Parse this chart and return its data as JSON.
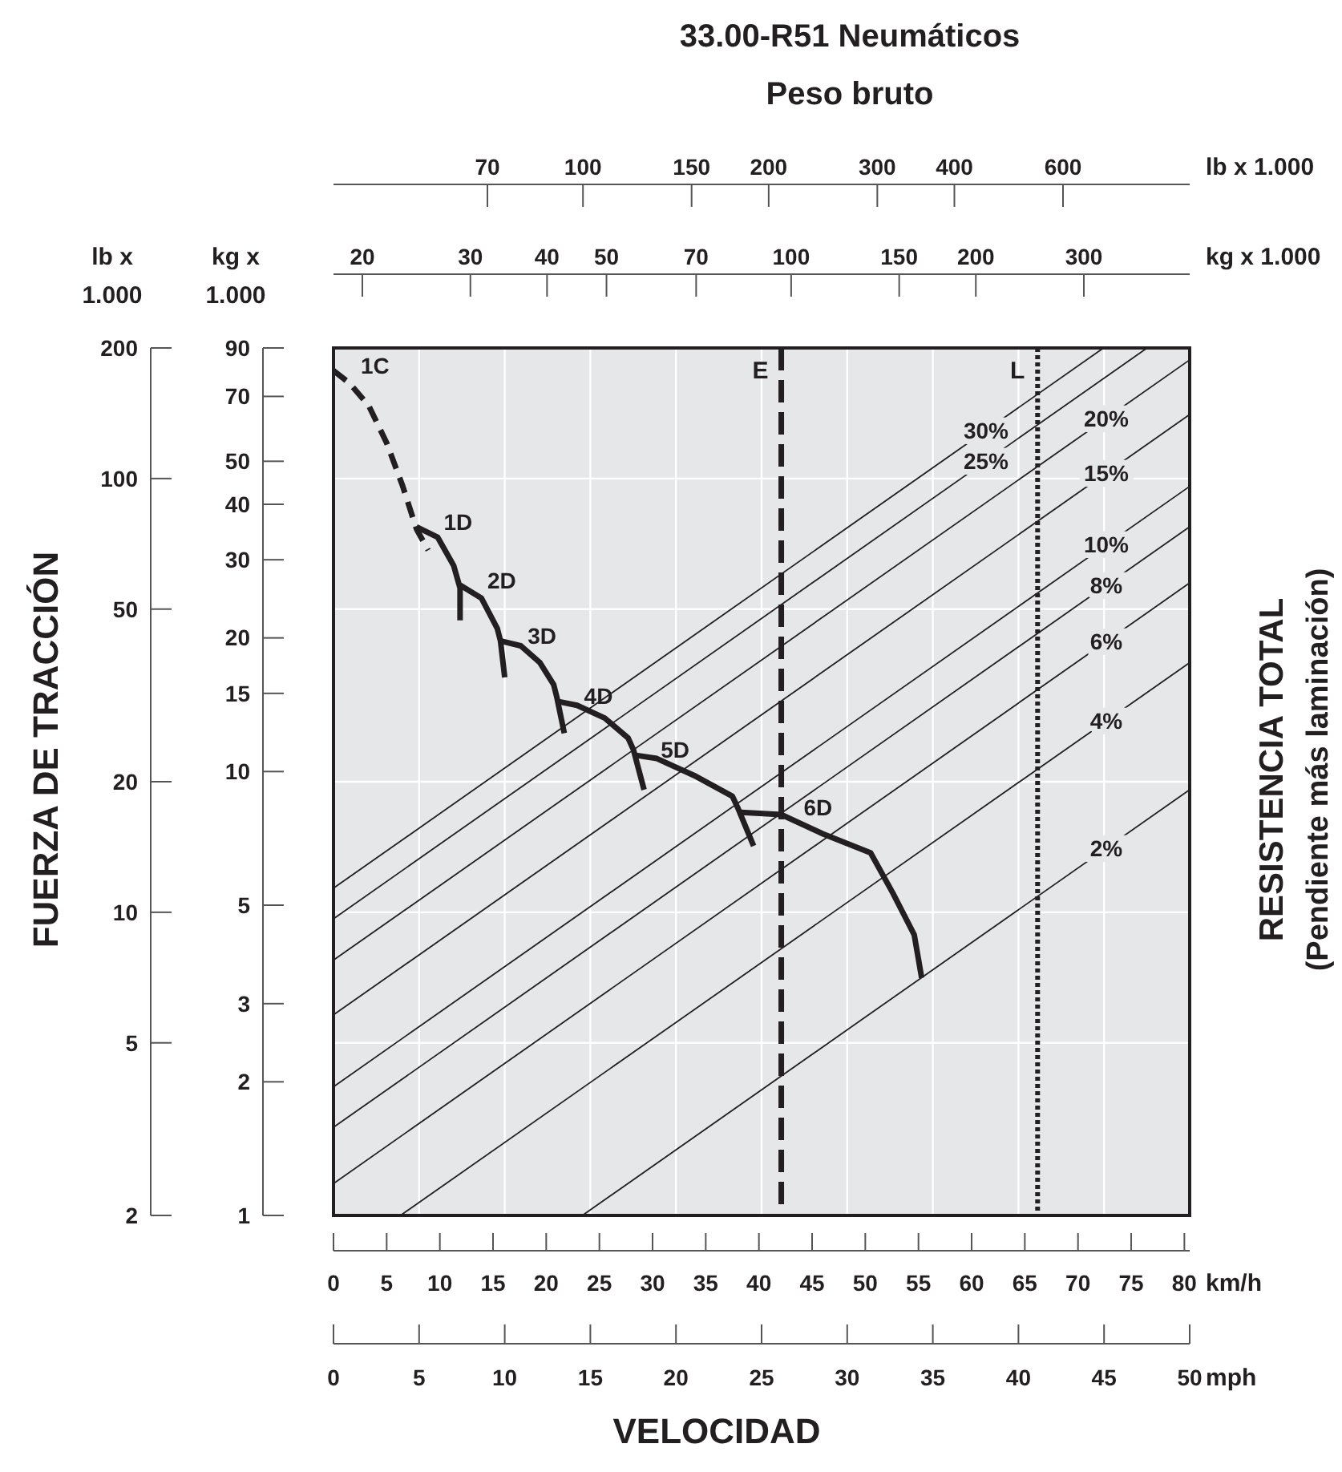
{
  "chart_data": [
    {
      "type": "other",
      "title": "33.00-R51 Neumáticos",
      "subtitle": "Peso bruto",
      "xlabel": "lb x 1.000",
      "annotations": [
        "70",
        "100",
        "150",
        "200",
        "300",
        "400",
        "600"
      ]
    },
    {
      "type": "other",
      "xlabel": "kg x 1.000",
      "annotations": [
        "20",
        "30",
        "40",
        "50",
        "70",
        "100",
        "150",
        "200",
        "300"
      ]
    },
    {
      "type": "other",
      "ylabel": "lb x 1.000",
      "annotations": [
        "2",
        "5",
        "10",
        "20",
        "50",
        "100",
        "200"
      ]
    },
    {
      "type": "line",
      "xlabel": "VELOCIDAD",
      "ylabel": "FUERZA DE TRACCIÓN",
      "x2label": "mph",
      "annotations": [
        "kg x 1.000",
        "km/h",
        "RESISTENCIA TOTAL",
        "(Pendiente más laminación)"
      ],
      "log": true,
      "grid": true,
      "xlim": [
        0,
        80.5
      ],
      "xticks": [
        0,
        5,
        10,
        15,
        20,
        25,
        30,
        35,
        40,
        45,
        50,
        55,
        60,
        65,
        70,
        75,
        80
      ],
      "x2lim": [
        0,
        50
      ],
      "x2ticks": [
        0,
        5,
        10,
        15,
        20,
        25,
        30,
        35,
        40,
        45,
        50
      ],
      "ylim": [
        1,
        90
      ],
      "yticks": [
        1,
        2,
        3,
        5,
        10,
        15,
        20,
        30,
        40,
        50,
        70,
        90
      ],
      "ref_lines": [
        {
          "axis": "x",
          "value": 42.1,
          "label": "E",
          "color": "#231f20",
          "line_style": "dashed"
        },
        {
          "axis": "x",
          "value": 66.2,
          "label": "L",
          "color": "#231f20",
          "line_style": "dotted"
        }
      ],
      "series": [
        {
          "name": "1C",
          "color": "#231f20",
          "line_style": "dashed",
          "x": [
            0,
            1.5,
            3.3,
            5.0,
            6.5,
            7.8,
            8.9
          ],
          "values": [
            80,
            75,
            66.8,
            55,
            44,
            35.2,
            31.5
          ]
        },
        {
          "name": "1D",
          "color": "#231f20",
          "x": [
            7.8,
            9.8,
            11.3,
            11.9,
            11.9
          ],
          "values": [
            35.6,
            33.7,
            29.1,
            25.9,
            21.9
          ]
        },
        {
          "name": "2D",
          "color": "#231f20",
          "x": [
            11.9,
            13.9,
            15.4,
            15.7,
            16.1
          ],
          "values": [
            26.3,
            24.6,
            21.0,
            19.7,
            16.3
          ]
        },
        {
          "name": "3D",
          "color": "#231f20",
          "x": [
            15.7,
            17.6,
            19.4,
            20.7,
            21.0,
            21.7
          ],
          "values": [
            19.7,
            19.2,
            17.6,
            15.7,
            14.7,
            12.2
          ]
        },
        {
          "name": "4D",
          "color": "#231f20",
          "x": [
            21.0,
            22.9,
            25.5,
            27.7,
            28.2,
            29.2
          ],
          "values": [
            14.4,
            14.1,
            13.2,
            11.9,
            11.2,
            9.1
          ]
        },
        {
          "name": "5D",
          "color": "#231f20",
          "x": [
            28.2,
            30.4,
            33.9,
            37.5,
            38.0,
            39.5
          ],
          "values": [
            10.9,
            10.7,
            9.8,
            8.8,
            8.3,
            6.8
          ]
        },
        {
          "name": "6D",
          "color": "#231f20",
          "x": [
            38.0,
            42.1,
            46.0,
            50.5,
            52.6,
            54.6,
            55.3
          ],
          "values": [
            8.1,
            8.0,
            7.24,
            6.56,
            5.32,
            4.29,
            3.43
          ]
        },
        {
          "name": "30%",
          "type": "line",
          "color": "#231f20",
          "x": [
            0,
            72.4
          ],
          "values": [
            5.46,
            90
          ]
        },
        {
          "name": "25%",
          "type": "line",
          "color": "#231f20",
          "x": [
            0,
            76.5
          ],
          "values": [
            4.66,
            90
          ]
        },
        {
          "name": "20%",
          "type": "line",
          "color": "#231f20",
          "x": [
            0,
            80.5
          ],
          "values": [
            3.76,
            84.6
          ]
        },
        {
          "name": "15%",
          "type": "line",
          "color": "#231f20",
          "x": [
            0,
            80.5
          ],
          "values": [
            2.83,
            63.7
          ]
        },
        {
          "name": "10%",
          "type": "line",
          "color": "#231f20",
          "x": [
            0,
            80.5
          ],
          "values": [
            1.95,
            43.9
          ]
        },
        {
          "name": "8%",
          "type": "line",
          "color": "#231f20",
          "x": [
            0,
            80.5
          ],
          "values": [
            1.58,
            35.6
          ]
        },
        {
          "name": "6%",
          "type": "line",
          "color": "#231f20",
          "x": [
            0,
            80.5
          ],
          "values": [
            1.18,
            26.6
          ]
        },
        {
          "name": "4%",
          "type": "line",
          "color": "#231f20",
          "x": [
            6.3,
            80.5
          ],
          "values": [
            1,
            17.6
          ]
        },
        {
          "name": "2%",
          "type": "line",
          "color": "#231f20",
          "x": [
            23.4,
            80.5
          ],
          "values": [
            1,
            9.1
          ]
        }
      ]
    }
  ]
}
